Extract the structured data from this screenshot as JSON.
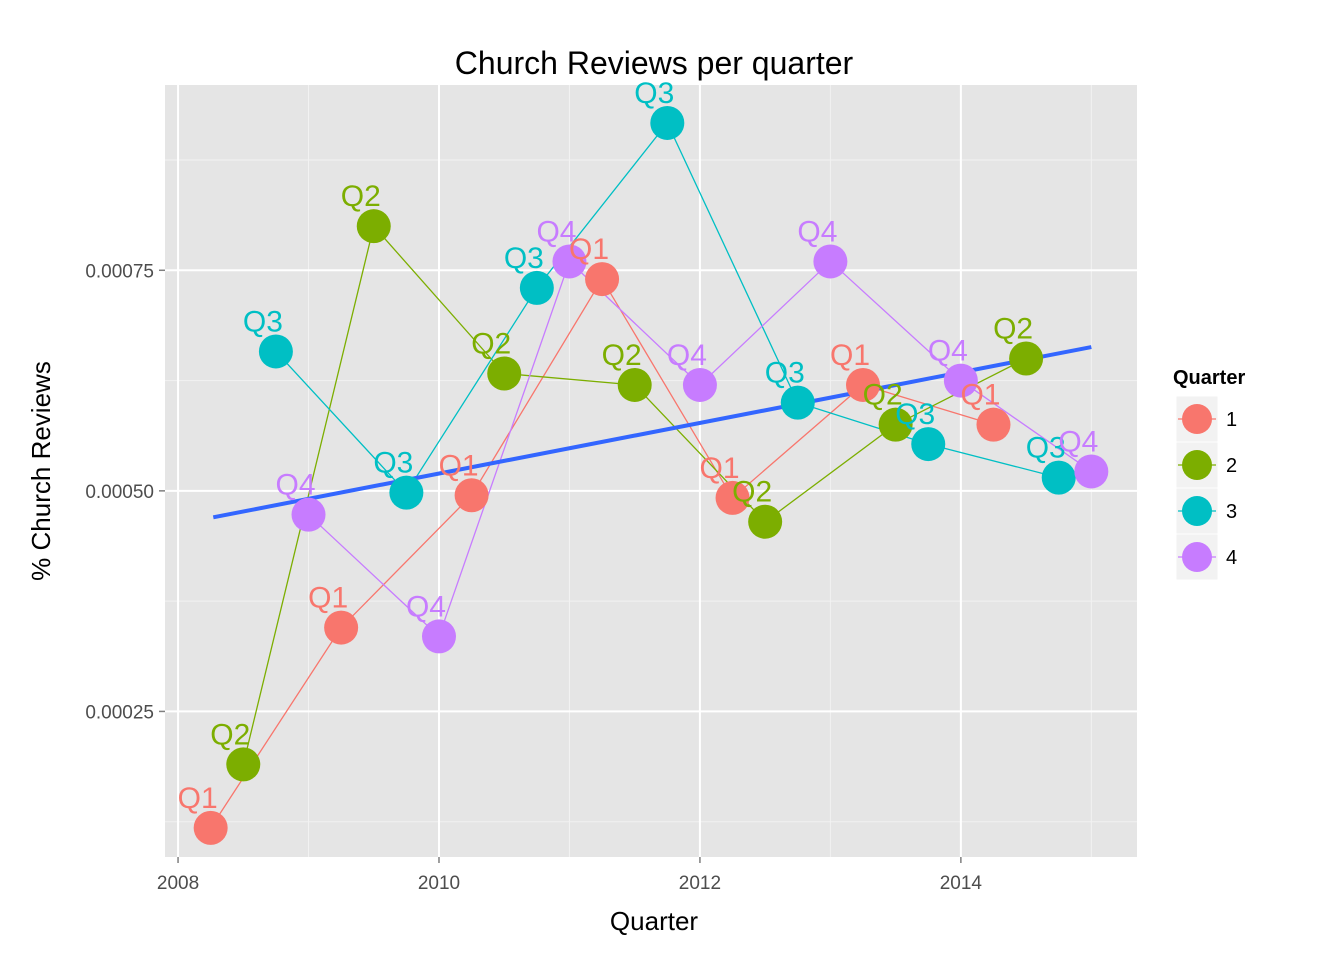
{
  "chart_data": {
    "type": "line",
    "title": "Church Reviews per quarter",
    "xlabel": "Quarter",
    "ylabel": "% Church Reviews",
    "xlim": [
      2007.9,
      2015.35
    ],
    "ylim": [
      8.5e-05,
      0.00096
    ],
    "x_ticks": [
      2008,
      2010,
      2012,
      2014
    ],
    "x_tick_labels": [
      "2008",
      "2010",
      "2012",
      "2014"
    ],
    "y_ticks": [
      0.00025,
      0.0005,
      0.00075
    ],
    "y_tick_labels": [
      "0.00025",
      "0.00050",
      "0.00075"
    ],
    "grid": true,
    "legend": {
      "title": "Quarter",
      "position": "right",
      "entries": [
        "1",
        "2",
        "3",
        "4"
      ]
    },
    "series": [
      {
        "name": "1",
        "color": "#F8766D",
        "points": [
          {
            "x": 2008.25,
            "y": 0.000118,
            "label": "Q1"
          },
          {
            "x": 2009.25,
            "y": 0.000345,
            "label": "Q1"
          },
          {
            "x": 2010.25,
            "y": 0.000495,
            "label": "Q1"
          },
          {
            "x": 2011.25,
            "y": 0.00074,
            "label": "Q1"
          },
          {
            "x": 2012.25,
            "y": 0.000492,
            "label": "Q1"
          },
          {
            "x": 2013.25,
            "y": 0.00062,
            "label": "Q1"
          },
          {
            "x": 2014.25,
            "y": 0.000575,
            "label": "Q1"
          }
        ]
      },
      {
        "name": "2",
        "color": "#7CAE00",
        "points": [
          {
            "x": 2008.5,
            "y": 0.00019,
            "label": "Q2"
          },
          {
            "x": 2009.5,
            "y": 0.0008,
            "label": "Q2"
          },
          {
            "x": 2010.5,
            "y": 0.000633,
            "label": "Q2"
          },
          {
            "x": 2011.5,
            "y": 0.00062,
            "label": "Q2"
          },
          {
            "x": 2012.5,
            "y": 0.000465,
            "label": "Q2"
          },
          {
            "x": 2013.5,
            "y": 0.000575,
            "label": "Q2"
          },
          {
            "x": 2014.5,
            "y": 0.00065,
            "label": "Q2"
          }
        ]
      },
      {
        "name": "3",
        "color": "#00BFC4",
        "points": [
          {
            "x": 2008.75,
            "y": 0.000658,
            "label": "Q3"
          },
          {
            "x": 2009.75,
            "y": 0.000498,
            "label": "Q3"
          },
          {
            "x": 2010.75,
            "y": 0.00073,
            "label": "Q3"
          },
          {
            "x": 2011.75,
            "y": 0.000917,
            "label": "Q3"
          },
          {
            "x": 2012.75,
            "y": 0.0006,
            "label": "Q3"
          },
          {
            "x": 2013.75,
            "y": 0.000553,
            "label": "Q3"
          },
          {
            "x": 2014.75,
            "y": 0.000515,
            "label": "Q3"
          }
        ]
      },
      {
        "name": "4",
        "color": "#C77CFF",
        "points": [
          {
            "x": 2009.0,
            "y": 0.000473,
            "label": "Q4"
          },
          {
            "x": 2010.0,
            "y": 0.000335,
            "label": "Q4"
          },
          {
            "x": 2011.0,
            "y": 0.00076,
            "label": "Q4"
          },
          {
            "x": 2012.0,
            "y": 0.00062,
            "label": "Q4"
          },
          {
            "x": 2013.0,
            "y": 0.00076,
            "label": "Q4"
          },
          {
            "x": 2014.0,
            "y": 0.000625,
            "label": "Q4"
          },
          {
            "x": 2015.0,
            "y": 0.000522,
            "label": "Q4"
          }
        ]
      }
    ],
    "trend_line": {
      "color": "#3366FF",
      "x": [
        2008.27,
        2015.0
      ],
      "y": [
        0.00047,
        0.000663
      ]
    }
  }
}
